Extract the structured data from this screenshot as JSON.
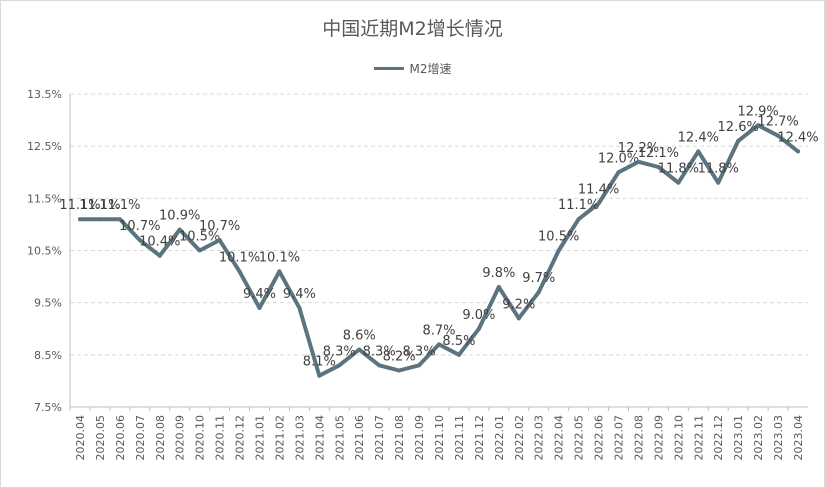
{
  "chart_data": {
    "type": "line",
    "title": "中国近期M2增长情况",
    "legend": {
      "position": "top"
    },
    "series": [
      {
        "name": "M2增速",
        "color": "#5b7480",
        "values": [
          11.1,
          11.1,
          11.1,
          10.7,
          10.4,
          10.9,
          10.5,
          10.7,
          10.1,
          9.4,
          10.1,
          9.4,
          8.1,
          8.3,
          8.6,
          8.3,
          8.2,
          8.3,
          8.7,
          8.5,
          9.0,
          9.8,
          9.2,
          9.7,
          10.5,
          11.1,
          11.4,
          12.0,
          12.2,
          12.1,
          11.8,
          12.4,
          11.8,
          12.6,
          12.9,
          12.7,
          12.4
        ],
        "labels": [
          "11.1%",
          "11.1%",
          "11.1%",
          "10.7%",
          "10.4%",
          "10.9%",
          "10.5%",
          "10.7%",
          "10.1%",
          "9.4%",
          "10.1%",
          "9.4%",
          "8.1%",
          "8.3%",
          "8.6%",
          "8.3%",
          "8.2%",
          "8.3%",
          "8.7%",
          "8.5%",
          "9.0%",
          "9.8%",
          "9.2%",
          "9.7%",
          "10.5%",
          "11.1%",
          "11.4%",
          "12.0%",
          "12.2%",
          "12.1%",
          "11.8%",
          "12.4%",
          "11.8%",
          "12.6%",
          "12.9%",
          "12.7%",
          "12.4%"
        ]
      }
    ],
    "categories": [
      "2020.04",
      "2020.05",
      "2020.06",
      "2020.07",
      "2020.08",
      "2020.09",
      "2020.10",
      "2020.11",
      "2020.12",
      "2021.01",
      "2021.02",
      "2021.03",
      "2021.04",
      "2021.05",
      "2021.06",
      "2021.07",
      "2021.08",
      "2021.09",
      "2021.10",
      "2021.11",
      "2021.12",
      "2022.01",
      "2022.02",
      "2022.03",
      "2022.04",
      "2022.05",
      "2022.06",
      "2022.07",
      "2022.08",
      "2022.09",
      "2022.10",
      "2022.11",
      "2022.12",
      "2023.01",
      "2023.02",
      "2023.03",
      "2023.04"
    ],
    "ylim": [
      7.5,
      13.5
    ],
    "yticks": [
      7.5,
      8.5,
      9.5,
      10.5,
      11.5,
      12.5,
      13.5
    ],
    "ytick_labels": [
      "7.5%",
      "8.5%",
      "9.5%",
      "10.5%",
      "11.5%",
      "12.5%",
      "13.5%"
    ],
    "grid": {
      "horizontal": true,
      "style": "dashed"
    }
  }
}
